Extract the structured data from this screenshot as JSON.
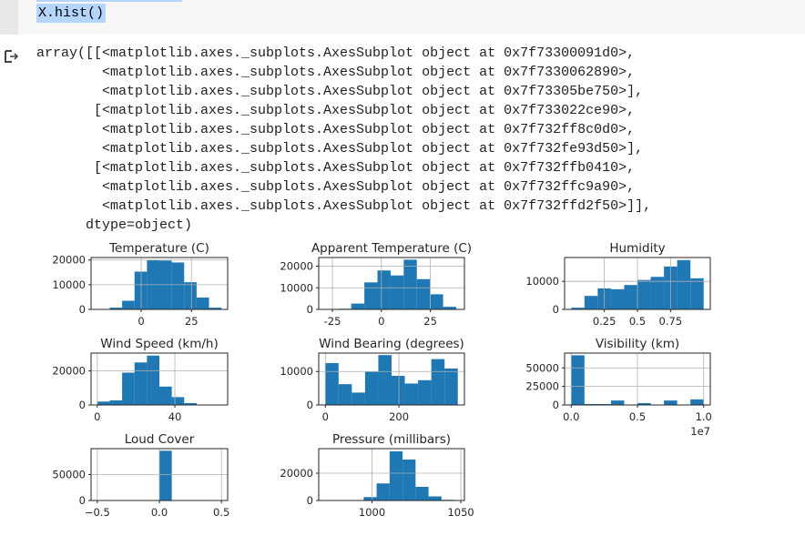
{
  "cell": {
    "code": "X.hist()"
  },
  "output": {
    "icon": "output-arrow-icon",
    "lines": [
      "array([[<matplotlib.axes._subplots.AxesSubplot object at 0x7f73300091d0>,",
      "        <matplotlib.axes._subplots.AxesSubplot object at 0x7f7330062890>,",
      "        <matplotlib.axes._subplots.AxesSubplot object at 0x7f73305be750>],",
      "       [<matplotlib.axes._subplots.AxesSubplot object at 0x7f733022ce90>,",
      "        <matplotlib.axes._subplots.AxesSubplot object at 0x7f732ff8c0d0>,",
      "        <matplotlib.axes._subplots.AxesSubplot object at 0x7f732fe93d50>],",
      "       [<matplotlib.axes._subplots.AxesSubplot object at 0x7f732ffb0410>,",
      "        <matplotlib.axes._subplots.AxesSubplot object at 0x7f732ffc9a90>,",
      "        <matplotlib.axes._subplots.AxesSubplot object at 0x7f732ffd2f50>]],",
      "      dtype=object)"
    ]
  },
  "colors": {
    "bar": "#1f77b4",
    "grid": "#b0b0b0",
    "axes": "#262626"
  },
  "chart_data": [
    {
      "type": "bar",
      "title": "Temperature (C)",
      "bin_start": -21.8,
      "bin_width": 6.17,
      "counts": [
        150,
        700,
        3500,
        15300,
        20000,
        19800,
        19000,
        11000,
        4800,
        700
      ],
      "xlim": [
        -24.9,
        43
      ],
      "ylim": [
        0,
        21000
      ],
      "xticks": [
        0,
        25
      ],
      "yticks": [
        0,
        10000,
        20000
      ],
      "grid": true
    },
    {
      "type": "bar",
      "title": "Apparent Temperature (C)",
      "bin_start": -28.8,
      "bin_width": 6.7,
      "counts": [
        100,
        300,
        2700,
        12500,
        18000,
        15700,
        23000,
        14000,
        7000,
        1200
      ],
      "xlim": [
        -32,
        42.4
      ],
      "ylim": [
        0,
        24000
      ],
      "xticks": [
        -25,
        0,
        25
      ],
      "yticks": [
        0,
        10000,
        20000
      ],
      "grid": true
    },
    {
      "type": "bar",
      "title": "Humidity",
      "bin_start": 0,
      "bin_width": 0.1,
      "counts": [
        600,
        4800,
        7500,
        7200,
        8700,
        10500,
        11600,
        15300,
        17600,
        11100
      ],
      "xlim": [
        -0.05,
        1.05
      ],
      "ylim": [
        0,
        18500
      ],
      "xticks": [
        0.25,
        0.5,
        0.75
      ],
      "yticks": [
        0,
        10000
      ],
      "grid": true
    },
    {
      "type": "bar",
      "title": "Wind Speed (km/h)",
      "bin_start": 0,
      "bin_width": 6.4,
      "counts": [
        2000,
        2700,
        19000,
        25000,
        29000,
        10800,
        4600,
        1100,
        50,
        20
      ],
      "xlim": [
        -3.2,
        67.2
      ],
      "ylim": [
        0,
        30500
      ],
      "xticks": [
        0,
        40
      ],
      "yticks": [
        0,
        20000
      ],
      "grid": true
    },
    {
      "type": "bar",
      "title": "Wind Bearing (degrees)",
      "bin_start": 0,
      "bin_width": 36,
      "counts": [
        12500,
        6200,
        3700,
        9900,
        14900,
        8700,
        6400,
        7400,
        13700,
        10900
      ],
      "xlim": [
        -18,
        378
      ],
      "ylim": [
        0,
        15500
      ],
      "xticks": [
        0,
        200
      ],
      "yticks": [
        0,
        10000
      ],
      "grid": true
    },
    {
      "type": "bar",
      "title": "Visibility (km)",
      "bin_start": 0,
      "bin_width": 0.1,
      "counts": [
        67000,
        1200,
        1200,
        6000,
        100,
        2500,
        100,
        6000,
        100,
        7500
      ],
      "xlim": [
        -0.05,
        1.05
      ],
      "ylim": [
        0,
        70000
      ],
      "xticks": [
        0.0,
        0.5,
        1.0
      ],
      "xtick_labels": [
        "0.0",
        "0.5",
        "1.0"
      ],
      "yticks": [
        0,
        25000,
        50000
      ],
      "offset_text": "1e7",
      "grid": true
    },
    {
      "type": "bar",
      "title": "Loud Cover",
      "bin_start": 0,
      "bin_width": 0.1,
      "counts": [
        95936
      ],
      "xlim": [
        -0.55,
        0.55
      ],
      "ylim": [
        0,
        100000
      ],
      "xticks": [
        -0.5,
        0.0,
        0.5
      ],
      "xtick_labels": [
        "−0.5",
        "0.0",
        "0.5"
      ],
      "yticks": [
        0,
        50000
      ],
      "grid": true
    },
    {
      "type": "bar",
      "title": "Pressure (millibars)",
      "bin_start": 988,
      "bin_width": 7.3,
      "counts": [
        300,
        2500,
        12500,
        36000,
        30000,
        10000,
        3000,
        500
      ],
      "xlim": [
        970,
        1052
      ],
      "ylim": [
        0,
        38000
      ],
      "xticks": [
        1000,
        1050
      ],
      "yticks": [
        0,
        20000
      ],
      "grid": true
    }
  ]
}
